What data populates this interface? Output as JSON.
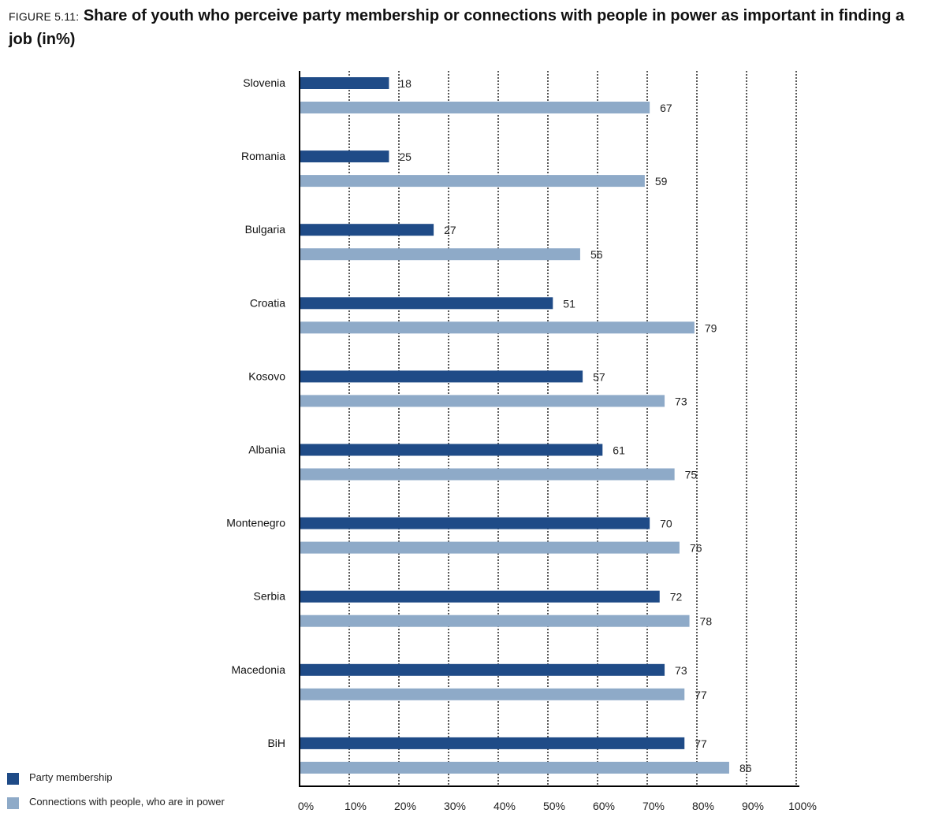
{
  "title": {
    "prefix": "FIGURE 5.11:",
    "main": "Share of youth who perceive party membership or connections with people in power as important in finding a job (in%)"
  },
  "colors": {
    "party": "#1f4b87",
    "connections": "#8eaac8",
    "axis": "#000000",
    "grid": "#000000"
  },
  "chart_data": {
    "type": "bar",
    "orientation": "horizontal",
    "categories": [
      "Slovenia",
      "Romania",
      "Bulgaria",
      "Croatia",
      "Kosovo",
      "Albania",
      "Montenegro",
      "Serbia",
      "Macedonia",
      "BiH"
    ],
    "series": [
      {
        "name": "Party membership",
        "values": [
          18,
          25,
          27,
          51,
          57,
          61,
          70,
          72,
          73,
          77
        ]
      },
      {
        "name": "Connections with people, who are in power",
        "values": [
          67,
          59,
          56,
          79,
          73,
          75,
          76,
          78,
          77,
          86
        ]
      }
    ],
    "bar_values": [
      [
        18,
        70.5
      ],
      [
        18,
        69.5
      ],
      [
        27,
        56.5
      ],
      [
        51,
        79.5
      ],
      [
        57,
        73.5
      ],
      [
        61,
        75.5
      ],
      [
        70.5,
        76.5
      ],
      [
        72.5,
        78.5
      ],
      [
        73.5,
        77.5
      ],
      [
        77.5,
        86.5
      ]
    ],
    "xlim": [
      0,
      100
    ],
    "xticks": [
      "0%",
      "10%",
      "20%",
      "30%",
      "40%",
      "50%",
      "60%",
      "70%",
      "80%",
      "90%",
      "100%"
    ],
    "grid": "vertical dotted",
    "legend_position": "bottom-left"
  }
}
